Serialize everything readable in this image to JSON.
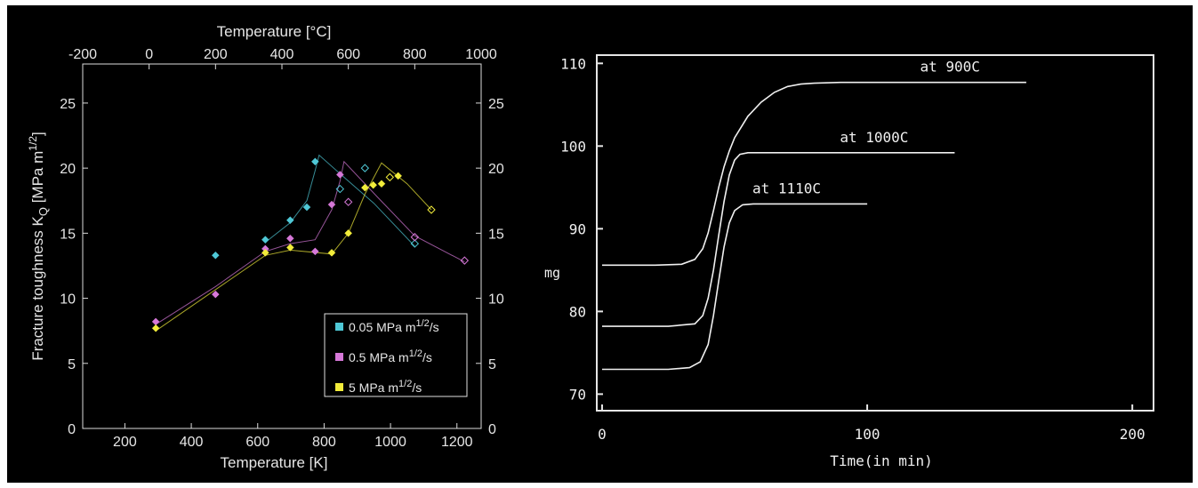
{
  "chart_data": [
    {
      "type": "scatter",
      "xlabel": "Temperature [K]",
      "x2label": "Temperature [°C]",
      "ylabel": {
        "main": "Fracture toughness K",
        "sub": "Q",
        "unit_open": " [MPa m",
        "sup": "1/2",
        "unit_close": "]"
      },
      "xlim": [
        73,
        1273
      ],
      "ylim": [
        0,
        28
      ],
      "xticks": [
        "200",
        "400",
        "600",
        "800",
        "1000",
        "1200"
      ],
      "x2ticks": [
        "-200",
        "0",
        "200",
        "400",
        "600",
        "800",
        "1000"
      ],
      "yticks": [
        "0",
        "5",
        "10",
        "15",
        "20",
        "25"
      ],
      "legend_position": "bottom-right",
      "series": [
        {
          "name": "0.05 MPa m1/2/s",
          "legend": {
            "main": "0.05 MPa m",
            "sup": "1/2",
            "tail": "/s"
          },
          "color": "#4fc8d6",
          "points": [
            {
              "x": 473,
              "y": 13.3,
              "filled": true
            },
            {
              "x": 623,
              "y": 14.5,
              "filled": true
            },
            {
              "x": 698,
              "y": 16.0,
              "filled": true
            },
            {
              "x": 748,
              "y": 17.0,
              "filled": true
            },
            {
              "x": 773,
              "y": 20.5,
              "filled": true
            },
            {
              "x": 848,
              "y": 18.4,
              "filled": false
            },
            {
              "x": 923,
              "y": 20.0,
              "filled": false
            },
            {
              "x": 1073,
              "y": 14.2,
              "filled": false
            }
          ],
          "fit": [
            [
              623,
              14.3
            ],
            [
              698,
              15.8
            ],
            [
              748,
              17.5
            ],
            [
              773,
              19.8
            ],
            [
              785,
              21.0
            ],
            [
              860,
              19.3
            ],
            [
              950,
              17.3
            ],
            [
              1073,
              14.0
            ]
          ]
        },
        {
          "name": "0.5 MPa m1/2/s",
          "legend": {
            "main": "0.5 MPa m",
            "sup": "1/2",
            "tail": "/s"
          },
          "color": "#d678d8",
          "points": [
            {
              "x": 293,
              "y": 8.2,
              "filled": true
            },
            {
              "x": 473,
              "y": 10.3,
              "filled": true
            },
            {
              "x": 623,
              "y": 13.8,
              "filled": true
            },
            {
              "x": 698,
              "y": 14.6,
              "filled": true
            },
            {
              "x": 773,
              "y": 13.6,
              "filled": true
            },
            {
              "x": 823,
              "y": 17.2,
              "filled": true
            },
            {
              "x": 848,
              "y": 19.5,
              "filled": true
            },
            {
              "x": 873,
              "y": 17.4,
              "filled": false
            },
            {
              "x": 1073,
              "y": 14.7,
              "filled": false
            },
            {
              "x": 1223,
              "y": 12.9,
              "filled": false
            }
          ],
          "fit": [
            [
              293,
              8.0
            ],
            [
              473,
              10.9
            ],
            [
              623,
              13.6
            ],
            [
              698,
              14.2
            ],
            [
              773,
              14.5
            ],
            [
              823,
              16.8
            ],
            [
              848,
              19.0
            ],
            [
              860,
              20.5
            ],
            [
              960,
              17.8
            ],
            [
              1073,
              14.8
            ],
            [
              1223,
              12.8
            ]
          ]
        },
        {
          "name": "5 MPa m1/2/s",
          "legend": {
            "main": "5 MPa m",
            "sup": "1/2",
            "tail": "/s"
          },
          "color": "#f2ec3a",
          "points": [
            {
              "x": 293,
              "y": 7.7,
              "filled": true
            },
            {
              "x": 623,
              "y": 13.5,
              "filled": true
            },
            {
              "x": 698,
              "y": 13.9,
              "filled": true
            },
            {
              "x": 823,
              "y": 13.5,
              "filled": true
            },
            {
              "x": 873,
              "y": 15.0,
              "filled": true
            },
            {
              "x": 923,
              "y": 18.5,
              "filled": true
            },
            {
              "x": 948,
              "y": 18.7,
              "filled": true
            },
            {
              "x": 973,
              "y": 18.8,
              "filled": true
            },
            {
              "x": 1023,
              "y": 19.4,
              "filled": true
            },
            {
              "x": 998,
              "y": 19.3,
              "filled": false
            },
            {
              "x": 1123,
              "y": 16.8,
              "filled": false
            }
          ],
          "fit": [
            [
              293,
              7.5
            ],
            [
              623,
              13.3
            ],
            [
              698,
              13.7
            ],
            [
              823,
              13.4
            ],
            [
              873,
              15.0
            ],
            [
              923,
              18.0
            ],
            [
              973,
              20.4
            ],
            [
              1050,
              18.8
            ],
            [
              1123,
              16.8
            ]
          ]
        }
      ]
    },
    {
      "type": "line",
      "xlabel": "Time(in min)",
      "ylabel": "mg",
      "xlim": [
        -2,
        208
      ],
      "ylim": [
        68,
        111
      ],
      "xticks": [
        "0",
        "100",
        "200"
      ],
      "yticks": [
        "70",
        "80",
        "90",
        "100",
        "110"
      ],
      "series": [
        {
          "label": "at 900C",
          "color": "#f0f0f0",
          "x": [
            0,
            20,
            30,
            35,
            38,
            40,
            42,
            44,
            46,
            48,
            50,
            55,
            60,
            65,
            70,
            75,
            80,
            90,
            100,
            160
          ],
          "y": [
            85.6,
            85.6,
            85.7,
            86.3,
            87.6,
            89.5,
            92.2,
            95.0,
            97.5,
            99.4,
            101.0,
            103.6,
            105.3,
            106.5,
            107.2,
            107.5,
            107.6,
            107.7,
            107.7,
            107.7
          ]
        },
        {
          "label": "at 1000C",
          "color": "#f0f0f0",
          "x": [
            0,
            25,
            35,
            38,
            40,
            42,
            44,
            46,
            48,
            50,
            52,
            55,
            60,
            80,
            133
          ],
          "y": [
            78.2,
            78.2,
            78.5,
            79.5,
            81.6,
            85.0,
            89.2,
            93.3,
            96.5,
            98.3,
            99.0,
            99.2,
            99.2,
            99.2,
            99.2
          ]
        },
        {
          "label": "at 1110C",
          "color": "#f0f0f0",
          "x": [
            0,
            25,
            33,
            37,
            40,
            42,
            44,
            46,
            48,
            50,
            53,
            57,
            62,
            100
          ],
          "y": [
            73.0,
            73.0,
            73.2,
            73.9,
            76.0,
            79.5,
            83.7,
            87.8,
            90.7,
            92.2,
            92.9,
            93.0,
            93.0,
            93.0
          ]
        }
      ]
    }
  ]
}
